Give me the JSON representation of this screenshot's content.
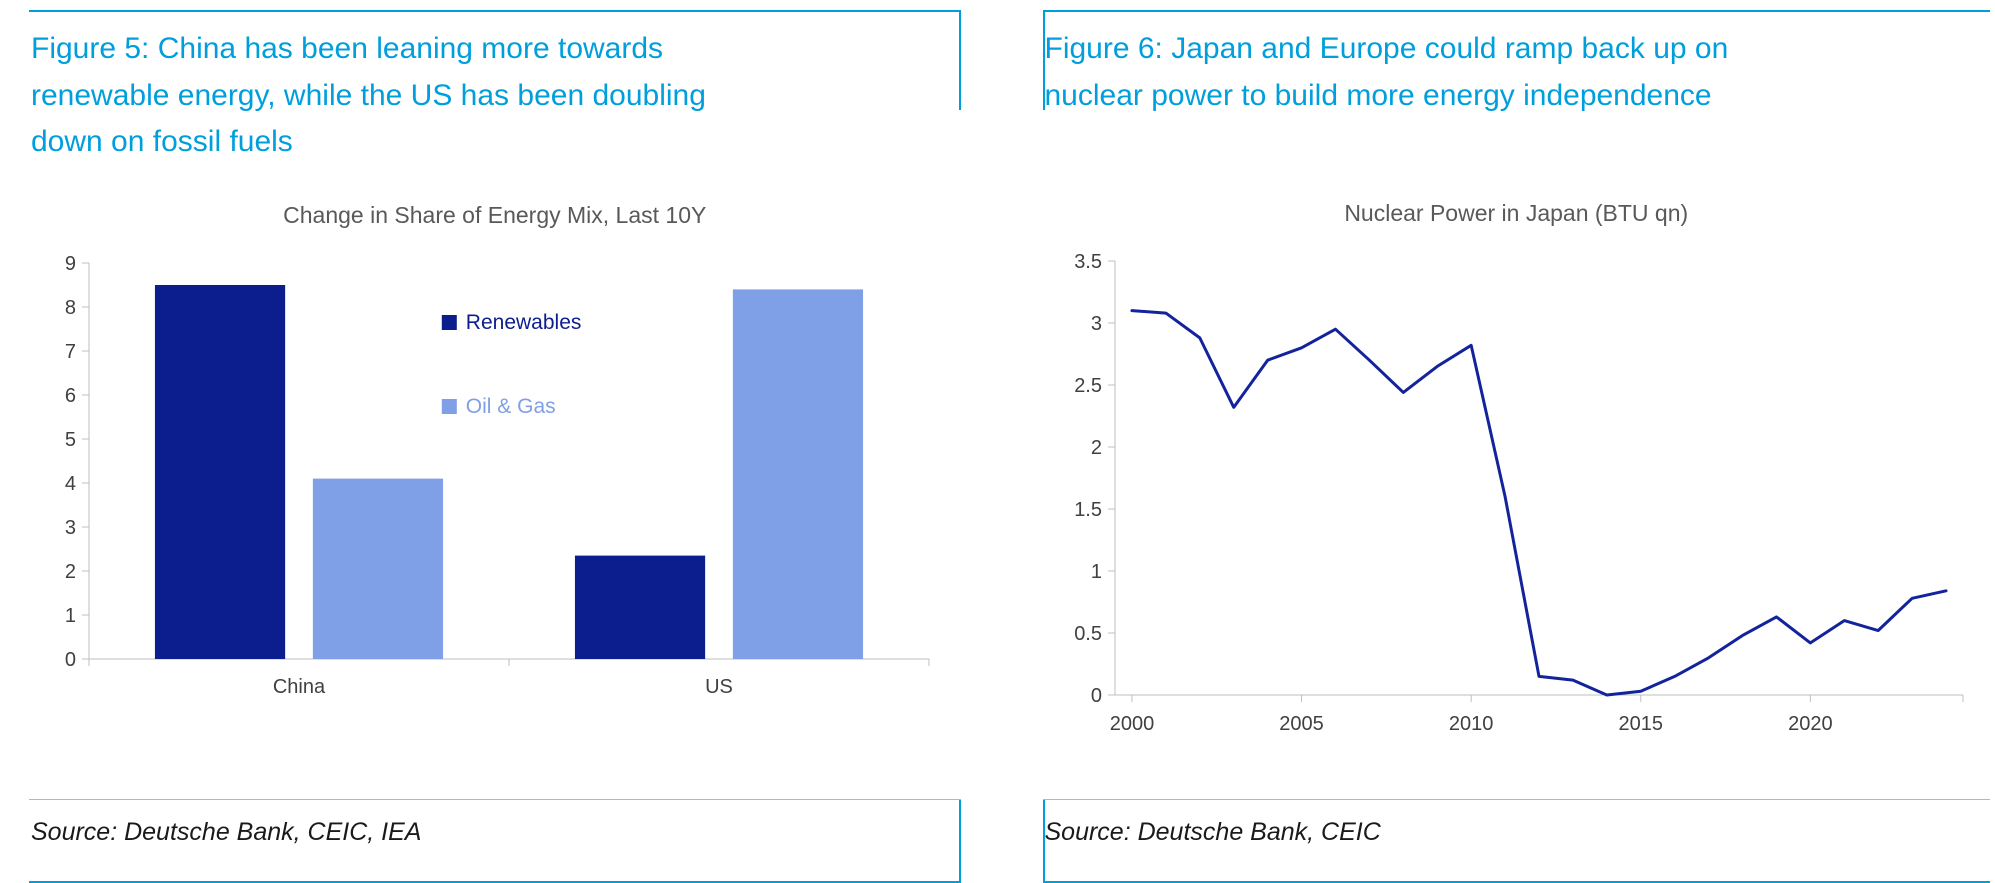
{
  "colors": {
    "accent_cyan": "#009fdc",
    "chart_title_gray": "#595959",
    "axis_text": "#404040",
    "axis_line": "#bfbfbf",
    "source_text": "#1a1a1a",
    "dark_navy": "#0c1e8e",
    "light_blue": "#7f9fe6",
    "line_navy": "#13239c"
  },
  "figure5": {
    "title_lines": [
      "Figure 5: China has been leaning more towards",
      "renewable energy, while the US has been doubling",
      "down on fossil fuels"
    ],
    "source": "Source: Deutsche Bank, CEIC, IEA"
  },
  "figure6": {
    "title_lines": [
      "Figure 6: Japan and Europe could ramp back up on",
      "nuclear power to build more energy independence"
    ],
    "source": "Source: Deutsche Bank, CEIC"
  },
  "chart_data": [
    {
      "type": "bar",
      "title": "Change in Share of Energy Mix, Last 10Y",
      "categories": [
        "China",
        "US"
      ],
      "series": [
        {
          "name": "Renewables",
          "values": [
            8.5,
            2.35
          ],
          "color": "#0c1e8e"
        },
        {
          "name": "Oil & Gas",
          "values": [
            4.1,
            8.4
          ],
          "color": "#7f9fe6"
        }
      ],
      "xlabel": "",
      "ylabel": "",
      "ylim": [
        0,
        9
      ],
      "yticks": [
        0,
        1,
        2,
        3,
        4,
        5,
        6,
        7,
        8,
        9
      ],
      "grid": false,
      "legend_position": "inside-top-right"
    },
    {
      "type": "line",
      "title": "Nuclear Power in Japan (BTU qn)",
      "x": [
        2000,
        2001,
        2002,
        2003,
        2004,
        2005,
        2006,
        2007,
        2008,
        2009,
        2010,
        2011,
        2012,
        2013,
        2014,
        2015,
        2016,
        2017,
        2018,
        2019,
        2020,
        2021,
        2022,
        2023,
        2024
      ],
      "values": [
        3.1,
        3.08,
        2.88,
        2.32,
        2.7,
        2.8,
        2.95,
        2.7,
        2.44,
        2.65,
        2.82,
        1.6,
        0.15,
        0.12,
        0.0,
        0.03,
        0.15,
        0.3,
        0.48,
        0.63,
        0.42,
        0.6,
        0.52,
        0.78,
        0.84
      ],
      "color": "#13239c",
      "xlabel": "",
      "ylabel": "",
      "ylim": [
        0,
        3.5
      ],
      "yticks": [
        0,
        0.5,
        1,
        1.5,
        2,
        2.5,
        3,
        3.5
      ],
      "xticks": [
        2000,
        2005,
        2010,
        2015,
        2020
      ],
      "grid": false,
      "legend_position": "none"
    }
  ]
}
